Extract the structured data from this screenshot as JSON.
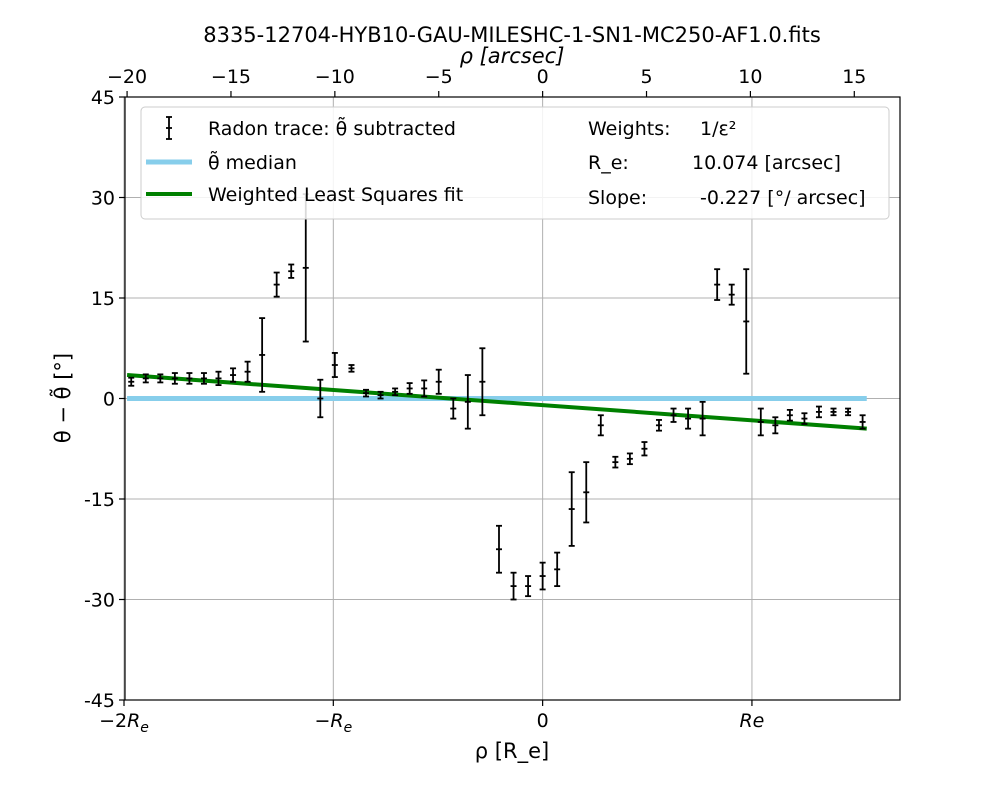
{
  "chart_data": {
    "type": "scatter",
    "title": "8335-12704-HYB10-GAU-MILESHC-1-SN1-MC250-AF1.0.fits",
    "xlabel": "ρ [R_e]",
    "ylabel": "θ − θ̃ [°]",
    "top_xlabel": "ρ [arcsec]",
    "xlim": [
      -20.1,
      17.2
    ],
    "ylim": [
      -45,
      45
    ],
    "bottom_ticks": [
      {
        "value": -20.148,
        "label": "−2R_e"
      },
      {
        "value": -10.074,
        "label": "−R_e"
      },
      {
        "value": 0,
        "label": "0"
      },
      {
        "value": 10.074,
        "label": "Re"
      }
    ],
    "top_ticks": [
      -20,
      -15,
      -10,
      -5,
      0,
      5,
      10,
      15
    ],
    "top_tick_labels": [
      "−20",
      "−15",
      "−10",
      "−5",
      "0",
      "5",
      "10",
      "15"
    ],
    "y_ticks": [
      45,
      30,
      15,
      0,
      -15,
      -30,
      -45
    ],
    "y_tick_labels": [
      "45",
      "30",
      "15",
      "0",
      "-15",
      "-30",
      "-45"
    ],
    "grid": true,
    "legend_position": "top",
    "series": [
      {
        "name": "Radon trace: θ̃ subtracted",
        "kind": "errorbar",
        "color": "#000000",
        "points": [
          {
            "x": -19.8,
            "y": 2.5,
            "err": 0.6
          },
          {
            "x": -19.1,
            "y": 3.0,
            "err": 0.6
          },
          {
            "x": -18.4,
            "y": 3.0,
            "err": 0.6
          },
          {
            "x": -17.7,
            "y": 3.0,
            "err": 0.8
          },
          {
            "x": -17.0,
            "y": 3.0,
            "err": 0.8
          },
          {
            "x": -16.3,
            "y": 3.0,
            "err": 0.8
          },
          {
            "x": -15.6,
            "y": 3.0,
            "err": 1.0
          },
          {
            "x": -14.9,
            "y": 3.5,
            "err": 1.0
          },
          {
            "x": -14.2,
            "y": 4.0,
            "err": 1.5
          },
          {
            "x": -13.5,
            "y": 6.5,
            "err": 5.5
          },
          {
            "x": -12.8,
            "y": 17.0,
            "err": 1.8
          },
          {
            "x": -12.1,
            "y": 19.0,
            "err": 1.0
          },
          {
            "x": -11.4,
            "y": 19.5,
            "err": 11.0
          },
          {
            "x": -10.7,
            "y": 0.0,
            "err": 2.8
          },
          {
            "x": -10.0,
            "y": 5.0,
            "err": 1.8
          },
          {
            "x": -9.2,
            "y": 4.5,
            "err": 0.5
          },
          {
            "x": -8.5,
            "y": 0.8,
            "err": 0.5
          },
          {
            "x": -7.8,
            "y": 0.5,
            "err": 0.5
          },
          {
            "x": -7.1,
            "y": 1.0,
            "err": 0.5
          },
          {
            "x": -6.4,
            "y": 1.5,
            "err": 0.8
          },
          {
            "x": -5.7,
            "y": 1.5,
            "err": 1.2
          },
          {
            "x": -5.0,
            "y": 2.5,
            "err": 1.8
          },
          {
            "x": -4.3,
            "y": -1.5,
            "err": 1.5
          },
          {
            "x": -3.6,
            "y": -0.5,
            "err": 4.0
          },
          {
            "x": -2.9,
            "y": 2.5,
            "err": 5.0
          },
          {
            "x": -2.1,
            "y": -22.5,
            "err": 3.5
          },
          {
            "x": -1.4,
            "y": -28.0,
            "err": 2.0
          },
          {
            "x": -0.7,
            "y": -28.0,
            "err": 1.5
          },
          {
            "x": 0.0,
            "y": -26.5,
            "err": 2.0
          },
          {
            "x": 0.7,
            "y": -25.5,
            "err": 2.5
          },
          {
            "x": 1.4,
            "y": -16.5,
            "err": 5.5
          },
          {
            "x": 2.1,
            "y": -14.0,
            "err": 4.5
          },
          {
            "x": 2.8,
            "y": -4.0,
            "err": 1.5
          },
          {
            "x": 3.5,
            "y": -9.5,
            "err": 0.8
          },
          {
            "x": 4.2,
            "y": -9.0,
            "err": 0.8
          },
          {
            "x": 4.9,
            "y": -7.5,
            "err": 1.0
          },
          {
            "x": 5.6,
            "y": -4.0,
            "err": 0.8
          },
          {
            "x": 6.3,
            "y": -2.5,
            "err": 1.0
          },
          {
            "x": 7.0,
            "y": -3.0,
            "err": 1.5
          },
          {
            "x": 7.7,
            "y": -3.0,
            "err": 2.5
          },
          {
            "x": 8.4,
            "y": 17.0,
            "err": 2.3
          },
          {
            "x": 9.1,
            "y": 15.5,
            "err": 1.5
          },
          {
            "x": 9.8,
            "y": 11.5,
            "err": 7.8
          },
          {
            "x": 10.5,
            "y": -3.5,
            "err": 2.0
          },
          {
            "x": 11.2,
            "y": -4.0,
            "err": 1.2
          },
          {
            "x": 11.9,
            "y": -2.5,
            "err": 0.8
          },
          {
            "x": 12.6,
            "y": -3.0,
            "err": 0.8
          },
          {
            "x": 13.3,
            "y": -2.0,
            "err": 0.8
          },
          {
            "x": 14.0,
            "y": -2.0,
            "err": 0.5
          },
          {
            "x": 14.7,
            "y": -2.0,
            "err": 0.5
          },
          {
            "x": 15.4,
            "y": -3.5,
            "err": 1.0
          }
        ]
      },
      {
        "name": "θ̃ median",
        "kind": "line",
        "color": "#87ceeb",
        "x": [
          -20.0,
          15.6
        ],
        "y": [
          0,
          0
        ]
      },
      {
        "name": "Weighted Least Squares fit",
        "kind": "line",
        "color": "#008000",
        "x": [
          -20.0,
          15.6
        ],
        "y": [
          3.5,
          -4.5
        ]
      }
    ],
    "annotations": [
      {
        "label": "Weights:",
        "value": "1/ε²"
      },
      {
        "label": "R_e:",
        "value": "10.074 [arcsec]"
      },
      {
        "label": "Slope:",
        "value": "-0.227 [°/ arcsec]"
      }
    ]
  }
}
